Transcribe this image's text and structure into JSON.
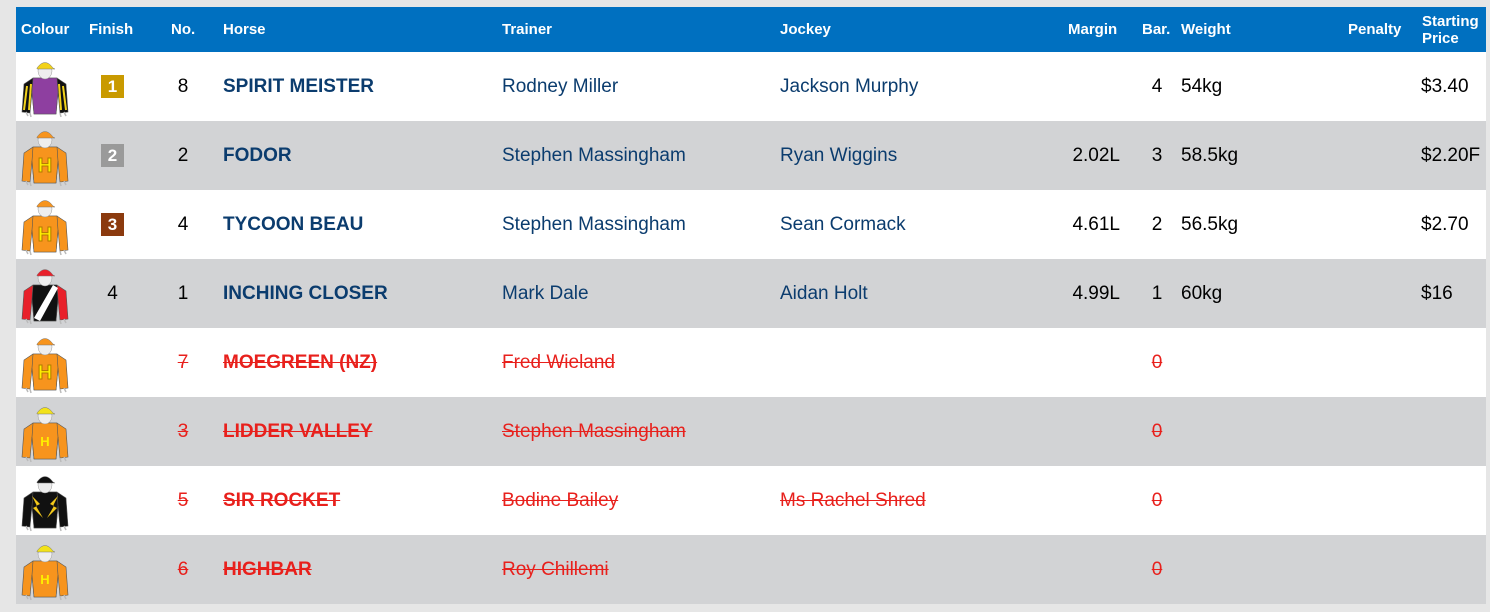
{
  "header": {
    "colour": "Colour",
    "finish": "Finish",
    "no": "No.",
    "horse": "Horse",
    "trainer": "Trainer",
    "jockey": "Jockey",
    "margin": "Margin",
    "bar": "Bar.",
    "weight": "Weight",
    "penalty": "Penalty",
    "sp_line1": "Starting",
    "sp_line2": "Price"
  },
  "colors": {
    "header": "#0070c0",
    "gold": "#c99a00",
    "silver": "#9a9a9a",
    "bronze": "#8b3a0e",
    "scratched": "#e8201c",
    "link": "#0b3c6e"
  },
  "runners": [
    {
      "finish": "1",
      "no": "8",
      "horse": "SPIRIT MEISTER",
      "trainer": "Rodney Miller",
      "jockey": "Jackson Murphy",
      "margin": "",
      "bar": "4",
      "weight": "54kg",
      "penalty": "",
      "sp": "$3.40",
      "scratched": false,
      "silk": {
        "body": "#8e3fa0",
        "sleeve": "#111111",
        "stripe": "#f2d21a",
        "cap": "#f2d21a",
        "pattern": "sleeve-stripes"
      }
    },
    {
      "finish": "2",
      "no": "2",
      "horse": "FODOR",
      "trainer": "Stephen Massingham",
      "jockey": "Ryan Wiggins",
      "margin": "2.02L",
      "bar": "3",
      "weight": "58.5kg",
      "penalty": "",
      "sp": "$2.20F",
      "scratched": false,
      "silk": {
        "body": "#f7941d",
        "sleeve": "#f7941d",
        "cap": "#f7941d",
        "letter": "H",
        "pattern": "big-h"
      }
    },
    {
      "finish": "3",
      "no": "4",
      "horse": "TYCOON BEAU",
      "trainer": "Stephen Massingham",
      "jockey": "Sean Cormack",
      "margin": "4.61L",
      "bar": "2",
      "weight": "56.5kg",
      "penalty": "",
      "sp": "$2.70",
      "scratched": false,
      "silk": {
        "body": "#f7941d",
        "sleeve": "#f7941d",
        "cap": "#f7941d",
        "letter": "H",
        "pattern": "big-h"
      }
    },
    {
      "finish": "4",
      "no": "1",
      "horse": "INCHING CLOSER",
      "trainer": "Mark Dale",
      "jockey": "Aidan Holt",
      "margin": "4.99L",
      "bar": "1",
      "weight": "60kg",
      "penalty": "",
      "sp": "$16",
      "scratched": false,
      "silk": {
        "body": "#111111",
        "sleeve": "#e8202a",
        "cap": "#e8202a",
        "pattern": "sash"
      }
    },
    {
      "finish": "",
      "no": "7",
      "horse": "MOEGREEN (NZ)",
      "trainer": "Fred Wieland",
      "jockey": "",
      "margin": "",
      "bar": "0",
      "weight": "",
      "penalty": "",
      "sp": "",
      "scratched": true,
      "silk": {
        "body": "#f7941d",
        "sleeve": "#f7941d",
        "cap": "#f7941d",
        "letter": "H",
        "pattern": "big-h"
      }
    },
    {
      "finish": "",
      "no": "3",
      "horse": "LIDDER VALLEY",
      "trainer": "Stephen Massingham",
      "jockey": "",
      "margin": "",
      "bar": "0",
      "weight": "",
      "penalty": "",
      "sp": "",
      "scratched": true,
      "silk": {
        "body": "#f7941d",
        "sleeve": "#f7941d",
        "cap": "#f2e21a",
        "letter": "H",
        "pattern": "small-h"
      }
    },
    {
      "finish": "",
      "no": "5",
      "horse": "SIR ROCKET",
      "trainer": "Bodine Bailey",
      "jockey": "Ms Rachel Shred",
      "margin": "",
      "bar": "0",
      "weight": "",
      "penalty": "",
      "sp": "",
      "scratched": true,
      "silk": {
        "body": "#111111",
        "sleeve": "#111111",
        "cap": "#111111",
        "pattern": "lightning"
      }
    },
    {
      "finish": "",
      "no": "6",
      "horse": "HIGHBAR",
      "trainer": "Roy Chillemi",
      "jockey": "",
      "margin": "",
      "bar": "0",
      "weight": "",
      "penalty": "",
      "sp": "",
      "scratched": true,
      "silk": {
        "body": "#f7941d",
        "sleeve": "#f7941d",
        "cap": "#f2e21a",
        "letter": "H",
        "pattern": "small-h"
      }
    }
  ]
}
